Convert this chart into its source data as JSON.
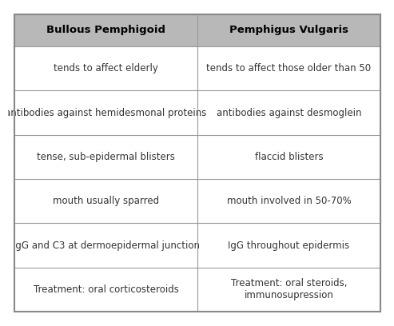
{
  "col1_header": "Bullous Pemphigoid",
  "col2_header": "Pemphigus Vulgaris",
  "rows": [
    [
      "tends to affect elderly",
      "tends to affect those older than 50"
    ],
    [
      "antibodies against hemidesmonal proteins",
      "antibodies against desmoglein"
    ],
    [
      "tense, sub-epidermal blisters",
      "flaccid blisters"
    ],
    [
      "mouth usually sparred",
      "mouth involved in 50-70%"
    ],
    [
      "IgG and C3 at dermoepidermal junction",
      "IgG throughout epidermis"
    ],
    [
      "Treatment: oral corticosteroids",
      "Treatment: oral steroids,\nimmunosupression"
    ]
  ],
  "header_bg": "#b8b8b8",
  "header_text_color": "#000000",
  "row_bg": "#ffffff",
  "border_color": "#999999",
  "text_color": "#333333",
  "fig_bg": "#ffffff",
  "header_fontsize": 9.5,
  "cell_fontsize": 8.5,
  "outer_border_color": "#888888",
  "outer_lw": 1.5,
  "inner_lw": 0.8
}
